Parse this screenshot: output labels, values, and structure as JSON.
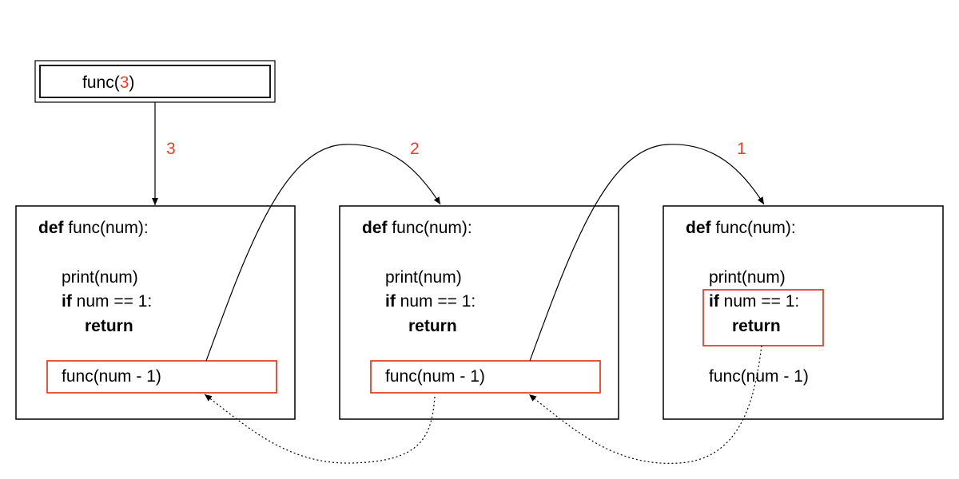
{
  "colors": {
    "accent": "#e0442c",
    "stroke": "#000000"
  },
  "call": {
    "prefix": "func(",
    "arg": "3",
    "suffix": ")"
  },
  "arrow_labels": [
    "3",
    "2",
    "1"
  ],
  "frames": [
    {
      "def_keyword": "def",
      "def_rest": " func(num):",
      "print_line": "print(num)",
      "if_keyword": "if",
      "if_rest": " num == 1:",
      "return_keyword": "return",
      "call_line": "func(num - 1)"
    },
    {
      "def_keyword": "def",
      "def_rest": " func(num):",
      "print_line": "print(num)",
      "if_keyword": "if",
      "if_rest": " num == 1:",
      "return_keyword": "return",
      "call_line": "func(num - 1)"
    },
    {
      "def_keyword": "def",
      "def_rest": " func(num):",
      "print_line": "print(num)",
      "if_keyword": "if",
      "if_rest": " num == 1:",
      "return_keyword": "return",
      "call_line": "func(num - 1)"
    }
  ]
}
